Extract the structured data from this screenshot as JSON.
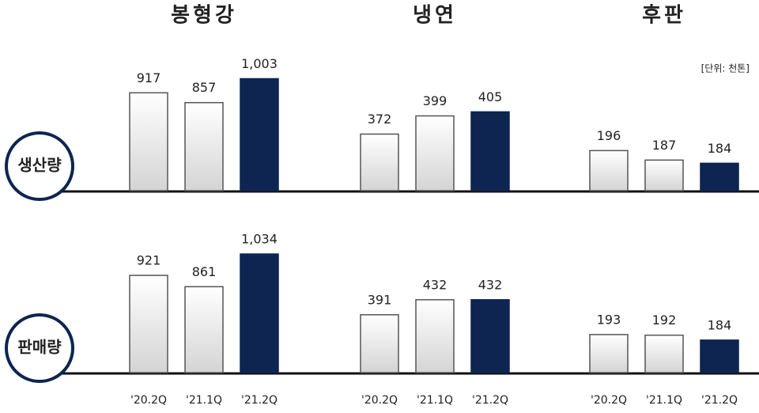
{
  "columns": [
    "봉형강",
    "냉연",
    "후판"
  ],
  "rows": [
    "생산량",
    "판매량"
  ],
  "unit": "[단위: 천톤]",
  "categories": [
    "'20.2Q",
    "'21.1Q",
    "'21.2Q"
  ],
  "bar_colors": [
    "#f2f2f2",
    "#f2f2f2",
    "#0d2550"
  ],
  "chart_data": [
    {
      "type": "bar",
      "values": [
        917,
        857,
        1003
      ],
      "value_labels": [
        "917",
        "857",
        "1,003"
      ],
      "ylim": [
        320,
        1150
      ]
    },
    {
      "type": "bar",
      "values": [
        372,
        399,
        405
      ],
      "value_labels": [
        "372",
        "399",
        "405"
      ],
      "ylim": [
        288,
        490
      ]
    },
    {
      "type": "bar",
      "values": [
        196,
        187,
        184
      ],
      "value_labels": [
        "196",
        "187",
        "184"
      ],
      "ylim": [
        158,
        287
      ]
    },
    {
      "type": "bar",
      "values": [
        921,
        861,
        1034
      ],
      "value_labels": [
        "921",
        "861",
        "1,034"
      ],
      "ylim": [
        406,
        1118
      ]
    },
    {
      "type": "bar",
      "values": [
        391,
        432,
        432
      ],
      "value_labels": [
        "391",
        "432",
        "432"
      ],
      "ylim": [
        233,
        600
      ]
    },
    {
      "type": "bar",
      "values": [
        193,
        192,
        184
      ],
      "value_labels": [
        "193",
        "192",
        "184"
      ],
      "ylim": [
        131,
        350
      ]
    }
  ]
}
